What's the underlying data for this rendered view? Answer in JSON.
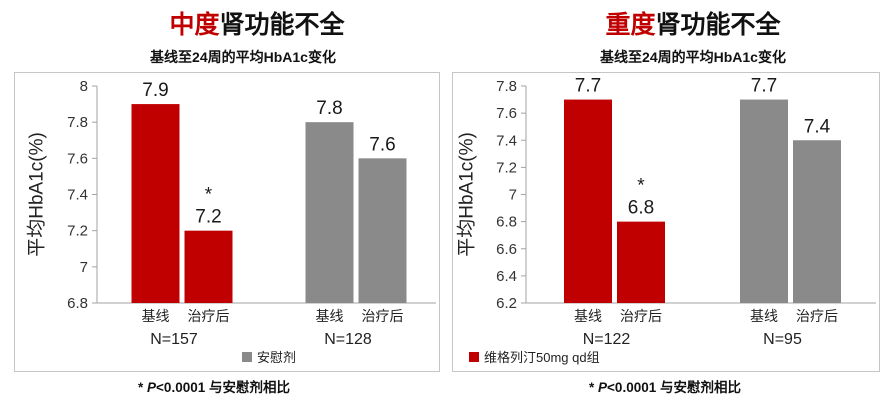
{
  "chart_data": [
    {
      "type": "bar",
      "title": {
        "emphasis": "中度",
        "text": "肾功能不全",
        "emphasis_color": "#c00000"
      },
      "subtitle": "基线至24周的平均HbA1c变化",
      "ylabel": "平均HbA1c(%)",
      "ylim": [
        6.8,
        8
      ],
      "yticks": [
        6.8,
        7,
        7.2,
        7.4,
        7.6,
        7.8,
        8
      ],
      "grid": false,
      "series": [
        {
          "color": "#c00000",
          "n_label": "N=157",
          "categories": [
            "基线",
            "治疗后"
          ],
          "values": [
            7.9,
            7.2
          ],
          "marks": [
            null,
            "*"
          ]
        },
        {
          "color": "#8a8a8a",
          "n_label": "N=128",
          "categories": [
            "基线",
            "治疗后"
          ],
          "values": [
            7.8,
            7.6
          ],
          "marks": [
            null,
            null
          ]
        }
      ],
      "legend": [
        {
          "label": "安慰剂",
          "color": "#8a8a8a"
        }
      ],
      "footnote": {
        "mark": "*",
        "symbol": "P",
        "text": "<0.0001 与安慰剂相比"
      }
    },
    {
      "type": "bar",
      "title": {
        "emphasis": "重度",
        "text": "肾功能不全",
        "emphasis_color": "#c00000"
      },
      "subtitle": "基线至24周的平均HbA1c变化",
      "ylabel": "平均HbA1c(%)",
      "ylim": [
        6.2,
        7.8
      ],
      "yticks": [
        6.2,
        6.4,
        6.6,
        6.8,
        7,
        7.2,
        7.4,
        7.6,
        7.8
      ],
      "grid": false,
      "series": [
        {
          "color": "#c00000",
          "n_label": "N=122",
          "categories": [
            "基线",
            "治疗后"
          ],
          "values": [
            7.7,
            6.8
          ],
          "marks": [
            null,
            "*"
          ]
        },
        {
          "color": "#8a8a8a",
          "n_label": "N=95",
          "categories": [
            "基线",
            "治疗后"
          ],
          "values": [
            7.7,
            7.4
          ],
          "marks": [
            null,
            null
          ]
        }
      ],
      "legend": [
        {
          "label": "维格列汀50mg qd组",
          "color": "#c00000"
        }
      ],
      "footnote": {
        "mark": "*",
        "symbol": "P",
        "text": "<0.0001 与安慰剂相比"
      }
    }
  ]
}
